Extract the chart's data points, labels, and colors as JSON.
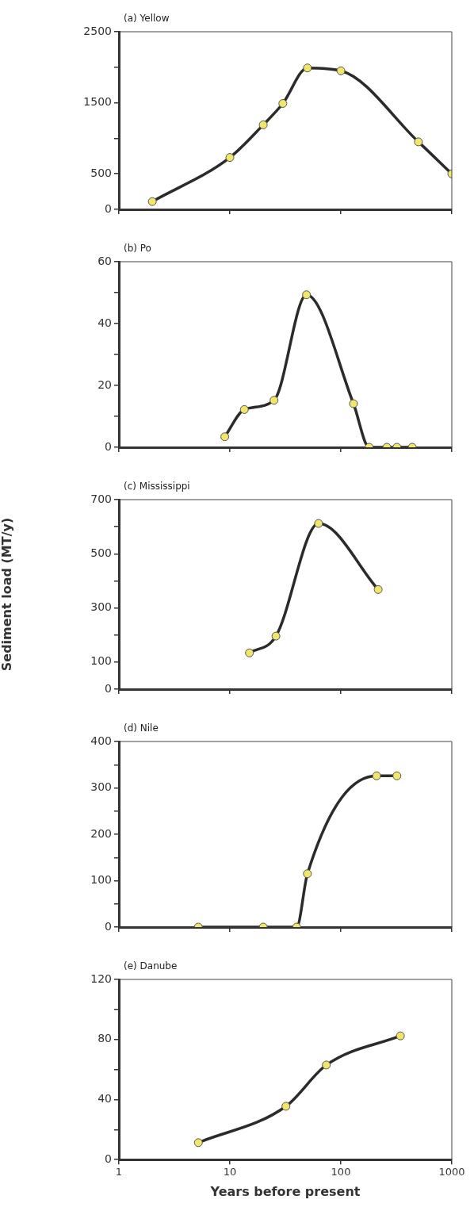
{
  "chart_data": [
    {
      "type": "line",
      "title": "(a) Yellow",
      "x": [
        2,
        10,
        20,
        30,
        50,
        100,
        500,
        1000
      ],
      "values": [
        110,
        730,
        1190,
        1490,
        1990,
        1950,
        950,
        500
      ],
      "color": "#2b2b2b",
      "marker": "circle",
      "log": "x",
      "xlim": [
        1,
        1000
      ],
      "xticks": [
        1,
        10,
        100,
        1000
      ],
      "ylim": [
        0,
        2500
      ],
      "yticks": [
        0,
        500,
        {
          "value": 1000,
          "label": null
        },
        1500,
        {
          "value": 2000,
          "label": null
        },
        2500
      ],
      "tick_labels": "y"
    },
    {
      "type": "line",
      "title": "(b) Po",
      "x": [
        9,
        13.5,
        25,
        49,
        130,
        180,
        260,
        320,
        440
      ],
      "values": [
        3.4,
        12.2,
        15.2,
        49.3,
        14.1,
        0,
        0,
        0,
        0
      ],
      "color": "#2b2b2b",
      "marker": "circle",
      "log": "x",
      "xlim": [
        1,
        1000
      ],
      "xticks": [
        1,
        10,
        100,
        1000
      ],
      "ylim": [
        0,
        60
      ],
      "yticks": [
        0,
        {
          "value": 10,
          "label": null
        },
        20,
        {
          "value": 30,
          "label": null
        },
        40,
        {
          "value": 50,
          "label": null
        },
        60
      ],
      "tick_labels": "y"
    },
    {
      "type": "line",
      "title": "(c) Mississippi",
      "ylabel": "Sediment load (MT/y)",
      "x": [
        15,
        26,
        63,
        217
      ],
      "values": [
        134,
        196,
        612,
        368
      ],
      "color": "#2b2b2b",
      "marker": "circle",
      "log": "x",
      "xlim": [
        1,
        1000
      ],
      "xticks": [
        1,
        10,
        100,
        1000
      ],
      "ylim": [
        0,
        700
      ],
      "yticks": [
        0,
        100,
        {
          "value": 200,
          "label": null
        },
        300,
        {
          "value": 400,
          "label": null
        },
        500,
        {
          "value": 600,
          "label": null
        },
        700
      ],
      "tick_labels": "y"
    },
    {
      "type": "line",
      "title": "(d) Nile",
      "x": [
        5.2,
        20,
        40,
        50,
        210,
        320
      ],
      "values": [
        0,
        0,
        0,
        115,
        326,
        326
      ],
      "color": "#2b2b2b",
      "marker": "circle",
      "log": "x",
      "xlim": [
        1,
        1000
      ],
      "xticks": [
        1,
        10,
        100,
        1000
      ],
      "ylim": [
        0,
        400
      ],
      "yticks": [
        0,
        {
          "value": 50,
          "label": null
        },
        100,
        {
          "value": 150,
          "label": null
        },
        200,
        {
          "value": 250,
          "label": null
        },
        300,
        {
          "value": 350,
          "label": null
        },
        400
      ],
      "tick_labels": "y"
    },
    {
      "type": "line",
      "title": "(e) Danube",
      "xlabel": "Years before present",
      "x": [
        5.2,
        32,
        74,
        344
      ],
      "values": [
        11.3,
        35.5,
        63,
        82.4
      ],
      "color": "#2b2b2b",
      "marker": "circle",
      "log": "x",
      "xlim": [
        1,
        1000
      ],
      "xticks": [
        1,
        10,
        100,
        1000
      ],
      "ylim": [
        0,
        120
      ],
      "yticks": [
        0,
        {
          "value": 20,
          "label": null
        },
        40,
        {
          "value": 60,
          "label": null
        },
        80,
        {
          "value": 100,
          "label": null
        },
        120
      ]
    }
  ]
}
